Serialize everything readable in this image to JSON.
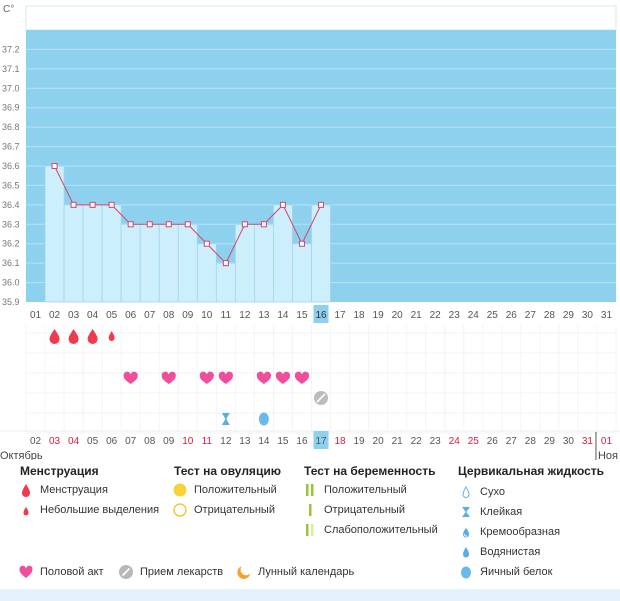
{
  "chart_data": {
    "type": "line",
    "ylabel": "С°",
    "ylim": [
      35.9,
      37.3
    ],
    "yticks": [
      "35.9",
      "36.0",
      "36.1",
      "36.2",
      "36.3",
      "36.4",
      "36.5",
      "36.6",
      "36.7",
      "36.8",
      "36.9",
      "37.0",
      "37.1",
      "37.2"
    ],
    "x_top": [
      "01",
      "02",
      "03",
      "04",
      "05",
      "06",
      "07",
      "08",
      "09",
      "10",
      "11",
      "12",
      "13",
      "14",
      "15",
      "16",
      "17",
      "18",
      "19",
      "20",
      "21",
      "22",
      "23",
      "24",
      "25",
      "26",
      "27",
      "28",
      "29",
      "30",
      "31"
    ],
    "current_day": "16",
    "series": [
      {
        "days": [
          "02",
          "03",
          "04",
          "05",
          "06",
          "07",
          "08",
          "09",
          "10",
          "11",
          "12",
          "13",
          "14",
          "15",
          "16"
        ],
        "values": [
          36.6,
          36.4,
          36.4,
          36.4,
          36.3,
          36.3,
          36.3,
          36.3,
          36.2,
          36.1,
          36.3,
          36.3,
          36.4,
          36.2,
          36.4
        ]
      }
    ],
    "grid": true,
    "colors": {
      "plot_bg": "#8dd1ef",
      "bar_fill": "#cdeefb",
      "bar_stroke": "#9fd3ec",
      "line": "#d4456b",
      "current_day": "#8dd1ef",
      "red_date": "#d81b40"
    },
    "markers": {
      "menstruation": [
        {
          "day": "02",
          "size": "large"
        },
        {
          "day": "03",
          "size": "large"
        },
        {
          "day": "04",
          "size": "large"
        },
        {
          "day": "05",
          "size": "small"
        }
      ],
      "intercourse": [
        "06",
        "08",
        "10",
        "11",
        "13",
        "14",
        "15"
      ],
      "medication": [
        "16"
      ],
      "cervical": [
        {
          "day": "11",
          "kind": "sticky"
        },
        {
          "day": "13",
          "kind": "egg-white"
        }
      ]
    },
    "x_bottom": [
      {
        "label": "02",
        "red": false
      },
      {
        "label": "03",
        "red": true
      },
      {
        "label": "04",
        "red": true
      },
      {
        "label": "05",
        "red": false
      },
      {
        "label": "06",
        "red": false
      },
      {
        "label": "07",
        "red": false
      },
      {
        "label": "08",
        "red": false
      },
      {
        "label": "09",
        "red": false
      },
      {
        "label": "10",
        "red": true
      },
      {
        "label": "11",
        "red": true
      },
      {
        "label": "12",
        "red": false
      },
      {
        "label": "13",
        "red": false
      },
      {
        "label": "14",
        "red": false
      },
      {
        "label": "15",
        "red": false
      },
      {
        "label": "16",
        "red": false
      },
      {
        "label": "17",
        "red": false,
        "current": true
      },
      {
        "label": "18",
        "red": true
      },
      {
        "label": "19",
        "red": false
      },
      {
        "label": "20",
        "red": false
      },
      {
        "label": "21",
        "red": false
      },
      {
        "label": "22",
        "red": false
      },
      {
        "label": "23",
        "red": false
      },
      {
        "label": "24",
        "red": true
      },
      {
        "label": "25",
        "red": true
      },
      {
        "label": "26",
        "red": false
      },
      {
        "label": "27",
        "red": false
      },
      {
        "label": "28",
        "red": false
      },
      {
        "label": "29",
        "red": false
      },
      {
        "label": "30",
        "red": false
      },
      {
        "label": "31",
        "red": true
      },
      {
        "label": "01",
        "red": true
      }
    ],
    "month_labels": [
      "Октябрь",
      "Ноя"
    ]
  },
  "legend": {
    "menstruation": {
      "title": "Менструация",
      "items": [
        "Менструация",
        "Небольшие выделения"
      ]
    },
    "ovulation": {
      "title": "Тест на овуляцию",
      "items": [
        "Положительный",
        "Отрицательный"
      ]
    },
    "pregnancy": {
      "title": "Тест на беременность",
      "items": [
        "Положительный",
        "Отрицательный",
        "Слабоположительный"
      ]
    },
    "cervical": {
      "title": "Цервикальная жидкость",
      "items": [
        "Сухо",
        "Клейкая",
        "Кремообразная",
        "Водянистая",
        "Яичный белок"
      ]
    },
    "bottom": {
      "intercourse": "Половой акт",
      "medication": "Прием лекарств",
      "lunar": "Лунный календарь"
    }
  }
}
